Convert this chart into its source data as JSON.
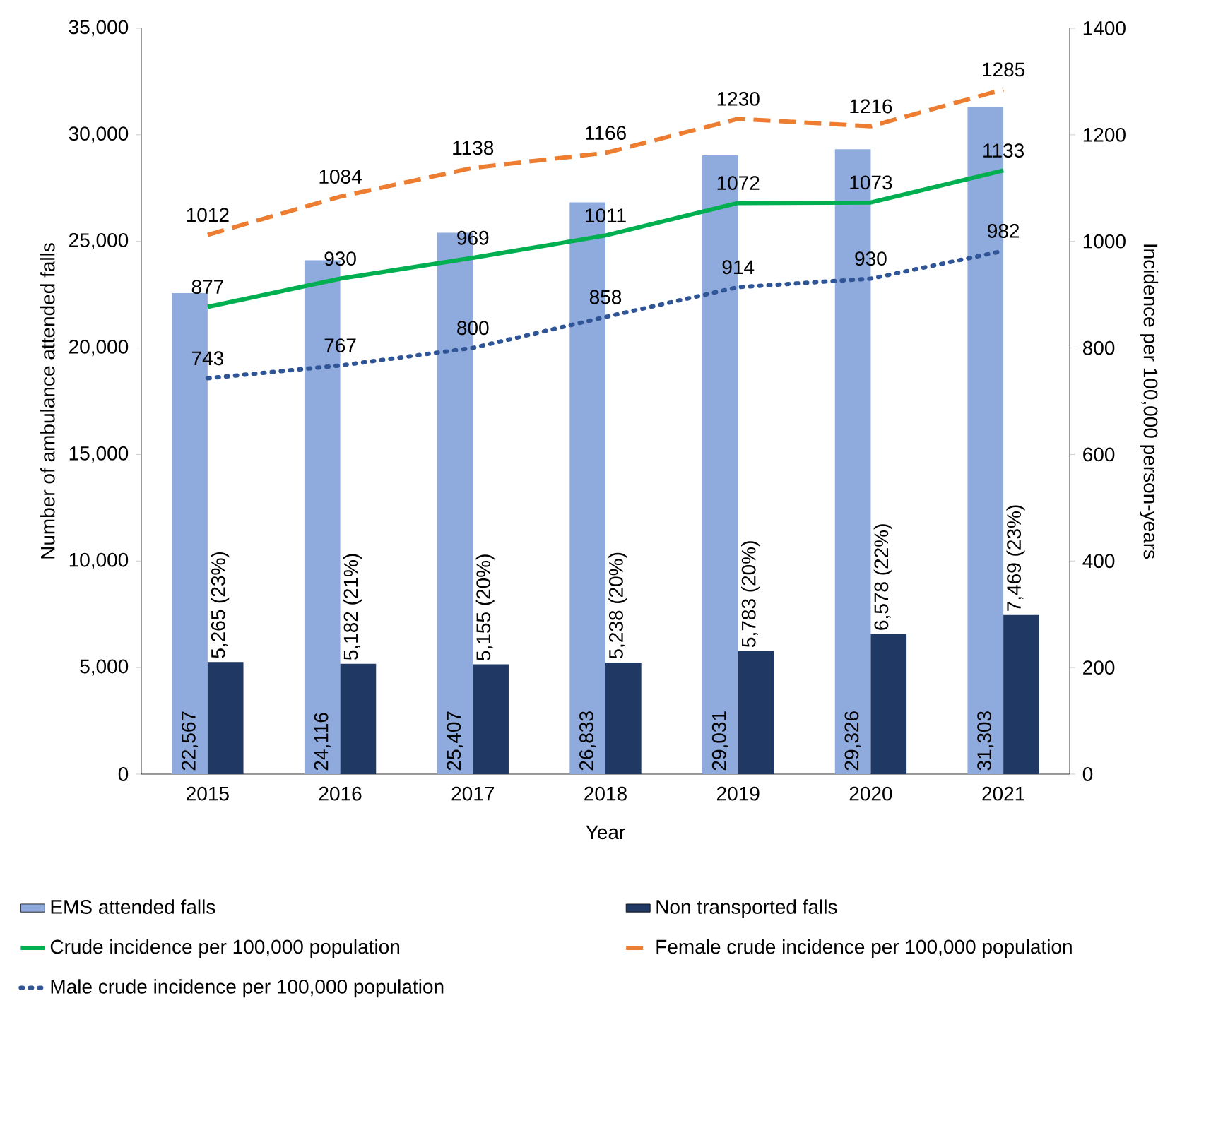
{
  "chart_data": {
    "type": "bar",
    "xlabel": "Year",
    "ylabel": "Number of ambulance attended falls",
    "y2label": "Incidence per 100,000 person-years",
    "categories": [
      "2015",
      "2016",
      "2017",
      "2018",
      "2019",
      "2020",
      "2021"
    ],
    "ylim": [
      0,
      35000
    ],
    "yticks": [
      0,
      {
        "value": 5000,
        "label": "5,000"
      },
      {
        "value": 10000,
        "label": "10,000"
      },
      {
        "value": 15000,
        "label": "15,000"
      },
      {
        "value": 20000,
        "label": "20,000"
      },
      {
        "value": 25000,
        "label": "25,000"
      },
      {
        "value": 30000,
        "label": "30,000"
      },
      {
        "value": 35000,
        "label": "35,000"
      }
    ],
    "y2lim": [
      0,
      1400
    ],
    "y2ticks": [
      0,
      200,
      400,
      600,
      800,
      1000,
      1200,
      1400
    ],
    "legend": "bottom",
    "series": [
      {
        "name": "EMS attended falls",
        "color": "#8faadc",
        "values": [
          22567,
          24116,
          25407,
          26833,
          29031,
          29326,
          31303
        ],
        "value_labels": [
          "22,567",
          "24,116",
          "25,407",
          "26,833",
          "29,031",
          "29,326",
          "31,303"
        ]
      },
      {
        "name": "Non transported falls",
        "color": "#203864",
        "values": [
          5265,
          5182,
          5155,
          5238,
          5783,
          6578,
          7469
        ],
        "value_labels": [
          "5,265 (23%)",
          "5,182 (21%)",
          "5,155 (20%)",
          "5,238 (20%)",
          "5,783 (20%)",
          "6,578 (22%)",
          "7,469 (23%)"
        ]
      },
      {
        "name": "Crude incidence per 100,000 population",
        "type": "line",
        "axis": "y2",
        "color": "#00b050",
        "line_style": "solid",
        "values": [
          877,
          930,
          969,
          1011,
          1072,
          1073,
          1133
        ],
        "value_labels": [
          "877",
          "930",
          "969",
          "1011",
          "1072",
          "1073",
          "1133"
        ]
      },
      {
        "name": "Female crude incidence per 100,000 population",
        "type": "line",
        "axis": "y2",
        "color": "#ed7d31",
        "line_style": "dashed",
        "values": [
          1012,
          1084,
          1138,
          1166,
          1230,
          1216,
          1285
        ],
        "value_labels": [
          "1012",
          "1084",
          "1138",
          "1166",
          "1230",
          "1216",
          "1285"
        ]
      },
      {
        "name": "Male crude incidence per 100,000 population",
        "type": "line",
        "axis": "y2",
        "color": "#2f5597",
        "line_style": "dotted",
        "values": [
          743,
          767,
          800,
          858,
          914,
          930,
          982
        ],
        "value_labels": [
          "743",
          "767",
          "800",
          "858",
          "914",
          "930",
          "982"
        ]
      }
    ]
  }
}
